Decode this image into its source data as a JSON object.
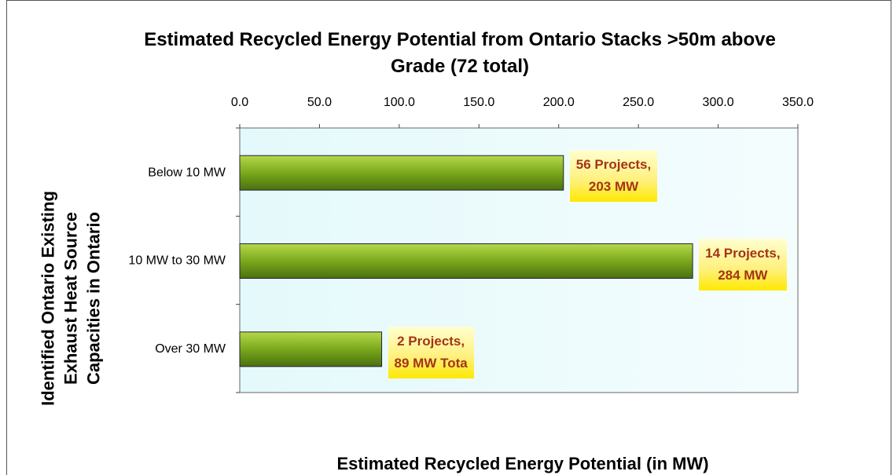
{
  "chart_data": {
    "type": "bar",
    "orientation": "horizontal",
    "title": "Estimated Recycled Energy Potential from Ontario Stacks >50m above Grade (72 total)",
    "x_label": "Estimated Recycled Energy Potential (in MW)",
    "y_label": "Identified Ontario Existing Exhaust Heat Source Capacities in Ontario",
    "categories": [
      "Below 10 MW",
      "10 MW to 30 MW",
      "Over 30 MW"
    ],
    "values": [
      203,
      284,
      89
    ],
    "value_labels": [
      "56 Projects,\n203 MW",
      "14 Projects,\n284 MW",
      "2 Projects,\n89 MW Tota"
    ],
    "color": "#7aa81c",
    "xlim": [
      0,
      350
    ],
    "xticks": [
      {
        "value": 0,
        "label": "0.0"
      },
      {
        "value": 50,
        "label": "50.0"
      },
      {
        "value": 100,
        "label": "100.0"
      },
      {
        "value": 150,
        "label": "150.0"
      },
      {
        "value": 200,
        "label": "200.0"
      },
      {
        "value": 250,
        "label": "250.0"
      },
      {
        "value": 300,
        "label": "300.0"
      },
      {
        "value": 350,
        "label": "350.0"
      }
    ],
    "grid": false
  }
}
